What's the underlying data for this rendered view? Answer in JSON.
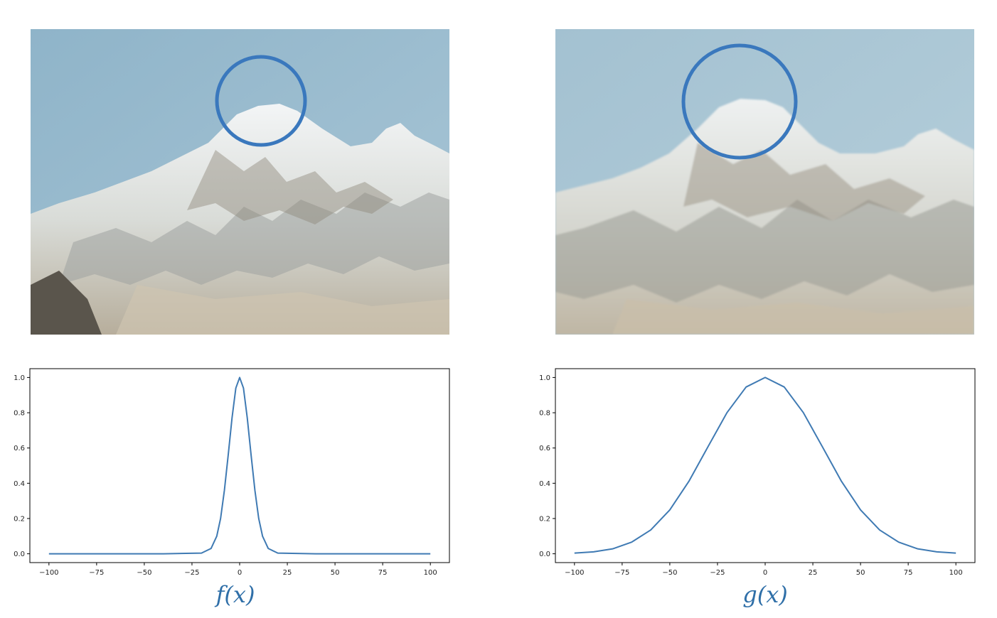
{
  "images": [
    {
      "name": "mountain-photo-sharp",
      "highlight_color": "#3a78bd"
    },
    {
      "name": "mountain-photo-blurred",
      "highlight_color": "#3a78bd"
    }
  ],
  "captions": {
    "left": "f(x)",
    "right": "g(x)"
  },
  "chart_data": [
    {
      "type": "line",
      "title": "",
      "xlabel": "",
      "ylabel": "",
      "xlim": [
        -100,
        100
      ],
      "ylim": [
        0,
        1
      ],
      "xticks": [
        -100,
        -75,
        -50,
        -25,
        0,
        25,
        50,
        75,
        100
      ],
      "xtick_labels": [
        "−100",
        "−75",
        "−50",
        "−25",
        "0",
        "25",
        "50",
        "75",
        "100"
      ],
      "yticks": [
        0.0,
        0.2,
        0.4,
        0.6,
        0.8,
        1.0
      ],
      "ytick_labels": [
        "0.0",
        "0.2",
        "0.4",
        "0.6",
        "0.8",
        "1.0"
      ],
      "grid": false,
      "series": [
        {
          "color": "#3f7ab3",
          "x": [
            -100,
            -40,
            -20,
            -15,
            -12,
            -10,
            -8,
            -6,
            -4,
            -2,
            0,
            2,
            4,
            6,
            8,
            10,
            12,
            15,
            20,
            40,
            100
          ],
          "y": [
            0,
            0,
            0.004,
            0.03,
            0.1,
            0.2,
            0.36,
            0.56,
            0.77,
            0.94,
            1.0,
            0.94,
            0.77,
            0.56,
            0.36,
            0.2,
            0.1,
            0.03,
            0.004,
            0,
            0
          ]
        }
      ]
    },
    {
      "type": "line",
      "title": "",
      "xlabel": "",
      "ylabel": "",
      "xlim": [
        -100,
        100
      ],
      "ylim": [
        0,
        1
      ],
      "xticks": [
        -100,
        -75,
        -50,
        -25,
        0,
        25,
        50,
        75,
        100
      ],
      "xtick_labels": [
        "−100",
        "−75",
        "−50",
        "−25",
        "0",
        "25",
        "50",
        "75",
        "100"
      ],
      "yticks": [
        0.0,
        0.2,
        0.4,
        0.6,
        0.8,
        1.0
      ],
      "ytick_labels": [
        "0.0",
        "0.2",
        "0.4",
        "0.6",
        "0.8",
        "1.0"
      ],
      "grid": false,
      "series": [
        {
          "color": "#3f7ab3",
          "x": [
            -100,
            -90,
            -80,
            -70,
            -60,
            -50,
            -40,
            -30,
            -20,
            -10,
            0,
            10,
            20,
            30,
            40,
            50,
            60,
            70,
            80,
            90,
            100
          ],
          "y": [
            0.004,
            0.011,
            0.028,
            0.066,
            0.135,
            0.249,
            0.411,
            0.607,
            0.801,
            0.946,
            1.0,
            0.946,
            0.801,
            0.607,
            0.411,
            0.249,
            0.135,
            0.066,
            0.028,
            0.011,
            0.004
          ]
        }
      ]
    }
  ]
}
